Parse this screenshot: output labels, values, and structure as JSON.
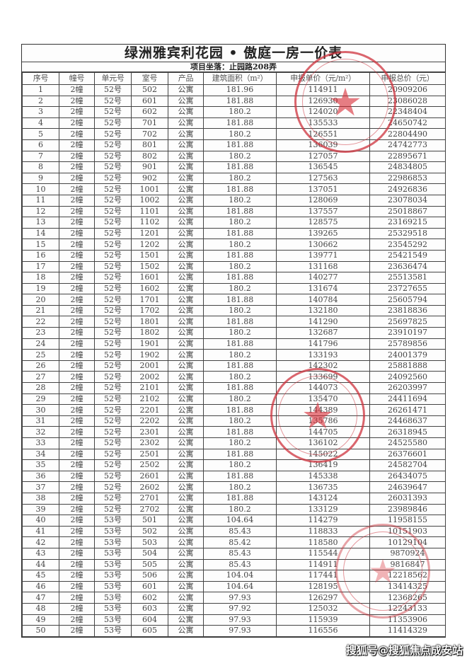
{
  "title": "绿洲雅宾利花园 • 傲庭一房一价表",
  "subtitle": "项目坐落：止园路208弄",
  "columns": [
    "序号",
    "幢号",
    "单元号",
    "室号",
    "产品",
    "建筑面积（m²）",
    "申报单价（元/m²）",
    "申报总价（元）"
  ],
  "rows": [
    [
      "1",
      "2幢",
      "52号",
      "502",
      "公寓",
      "181.96",
      "114911",
      "20909206"
    ],
    [
      "2",
      "2幢",
      "52号",
      "601",
      "公寓",
      "181.88",
      "126930",
      "23086028"
    ],
    [
      "3",
      "2幢",
      "52号",
      "602",
      "公寓",
      "180.2",
      "124020",
      "22348404"
    ],
    [
      "4",
      "2幢",
      "52号",
      "701",
      "公寓",
      "181.88",
      "135533",
      "24650742"
    ],
    [
      "5",
      "2幢",
      "52号",
      "702",
      "公寓",
      "180.2",
      "126551",
      "22804490"
    ],
    [
      "6",
      "2幢",
      "52号",
      "801",
      "公寓",
      "181.88",
      "136039",
      "24742773"
    ],
    [
      "7",
      "2幢",
      "52号",
      "802",
      "公寓",
      "180.2",
      "127057",
      "22895671"
    ],
    [
      "8",
      "2幢",
      "52号",
      "901",
      "公寓",
      "181.88",
      "136545",
      "24834805"
    ],
    [
      "9",
      "2幢",
      "52号",
      "902",
      "公寓",
      "180.2",
      "127563",
      "22986853"
    ],
    [
      "10",
      "2幢",
      "52号",
      "1001",
      "公寓",
      "181.88",
      "137051",
      "24926836"
    ],
    [
      "11",
      "2幢",
      "52号",
      "1002",
      "公寓",
      "180.2",
      "128069",
      "23078034"
    ],
    [
      "12",
      "2幢",
      "52号",
      "1101",
      "公寓",
      "181.88",
      "137557",
      "25018867"
    ],
    [
      "13",
      "2幢",
      "52号",
      "1102",
      "公寓",
      "180.2",
      "128575",
      "23169215"
    ],
    [
      "14",
      "2幢",
      "52号",
      "1201",
      "公寓",
      "181.88",
      "139265",
      "25329518"
    ],
    [
      "15",
      "2幢",
      "52号",
      "1202",
      "公寓",
      "180.2",
      "130662",
      "23545292"
    ],
    [
      "16",
      "2幢",
      "52号",
      "1501",
      "公寓",
      "181.88",
      "139771",
      "25421549"
    ],
    [
      "17",
      "2幢",
      "52号",
      "1502",
      "公寓",
      "180.2",
      "131168",
      "23636474"
    ],
    [
      "18",
      "2幢",
      "52号",
      "1601",
      "公寓",
      "181.88",
      "140277",
      "25513581"
    ],
    [
      "19",
      "2幢",
      "52号",
      "1602",
      "公寓",
      "180.2",
      "131674",
      "23727655"
    ],
    [
      "20",
      "2幢",
      "52号",
      "1701",
      "公寓",
      "181.88",
      "140784",
      "25605794"
    ],
    [
      "21",
      "2幢",
      "52号",
      "1702",
      "公寓",
      "180.2",
      "132180",
      "23818836"
    ],
    [
      "22",
      "2幢",
      "52号",
      "1801",
      "公寓",
      "181.88",
      "141290",
      "25697825"
    ],
    [
      "23",
      "2幢",
      "52号",
      "1802",
      "公寓",
      "180.2",
      "132687",
      "23910197"
    ],
    [
      "24",
      "2幢",
      "52号",
      "1901",
      "公寓",
      "181.88",
      "141796",
      "25789856"
    ],
    [
      "25",
      "2幢",
      "52号",
      "1902",
      "公寓",
      "180.2",
      "133193",
      "24001379"
    ],
    [
      "26",
      "2幢",
      "52号",
      "2001",
      "公寓",
      "181.88",
      "142302",
      "25881888"
    ],
    [
      "27",
      "2幢",
      "52号",
      "2002",
      "公寓",
      "180.2",
      "133699",
      "24092560"
    ],
    [
      "28",
      "2幢",
      "52号",
      "2101",
      "公寓",
      "181.88",
      "144073",
      "26203997"
    ],
    [
      "29",
      "2幢",
      "52号",
      "2102",
      "公寓",
      "180.2",
      "135470",
      "24411694"
    ],
    [
      "30",
      "2幢",
      "52号",
      "2201",
      "公寓",
      "181.88",
      "144389",
      "26261471"
    ],
    [
      "31",
      "2幢",
      "52号",
      "2202",
      "公寓",
      "180.2",
      "135786",
      "24468637"
    ],
    [
      "32",
      "2幢",
      "52号",
      "2301",
      "公寓",
      "181.88",
      "144705",
      "26318945"
    ],
    [
      "33",
      "2幢",
      "52号",
      "2302",
      "公寓",
      "180.2",
      "136102",
      "24525580"
    ],
    [
      "34",
      "2幢",
      "52号",
      "2501",
      "公寓",
      "181.88",
      "145022",
      "26376601"
    ],
    [
      "35",
      "2幢",
      "52号",
      "2502",
      "公寓",
      "180.2",
      "136419",
      "24582704"
    ],
    [
      "36",
      "2幢",
      "52号",
      "2601",
      "公寓",
      "181.88",
      "145338",
      "26434075"
    ],
    [
      "37",
      "2幢",
      "52号",
      "2602",
      "公寓",
      "180.2",
      "136735",
      "24639647"
    ],
    [
      "38",
      "2幢",
      "52号",
      "2701",
      "公寓",
      "181.88",
      "143124",
      "26031393"
    ],
    [
      "39",
      "2幢",
      "52号",
      "2702",
      "公寓",
      "180.2",
      "133129",
      "23989846"
    ],
    [
      "40",
      "2幢",
      "53号",
      "501",
      "公寓",
      "104.64",
      "114279",
      "11958155"
    ],
    [
      "41",
      "2幢",
      "53号",
      "502",
      "公寓",
      "85.43",
      "118833",
      "10151903"
    ],
    [
      "42",
      "2幢",
      "53号",
      "503",
      "公寓",
      "85.42",
      "118580",
      "10129104"
    ],
    [
      "43",
      "2幢",
      "53号",
      "504",
      "公寓",
      "85.43",
      "115544",
      "9870924"
    ],
    [
      "44",
      "2幢",
      "53号",
      "505",
      "公寓",
      "85.43",
      "114911",
      "9816847"
    ],
    [
      "45",
      "2幢",
      "53号",
      "506",
      "公寓",
      "104.04",
      "117441",
      "12218562"
    ],
    [
      "46",
      "2幢",
      "53号",
      "601",
      "公寓",
      "104.64",
      "128195",
      "13414325"
    ],
    [
      "47",
      "2幢",
      "53号",
      "602",
      "公寓",
      "97.93",
      "126297",
      "12368265"
    ],
    [
      "48",
      "2幢",
      "53号",
      "603",
      "公寓",
      "97.92",
      "125032",
      "12243133"
    ],
    [
      "49",
      "2幢",
      "53号",
      "604",
      "公寓",
      "97.93",
      "115939",
      "11353906"
    ],
    [
      "50",
      "2幢",
      "53号",
      "605",
      "公寓",
      "97.93",
      "116556",
      "11414329"
    ]
  ],
  "stamp_color": "#cd323c",
  "watermark": "搜狐号@搜狐焦点成安站"
}
